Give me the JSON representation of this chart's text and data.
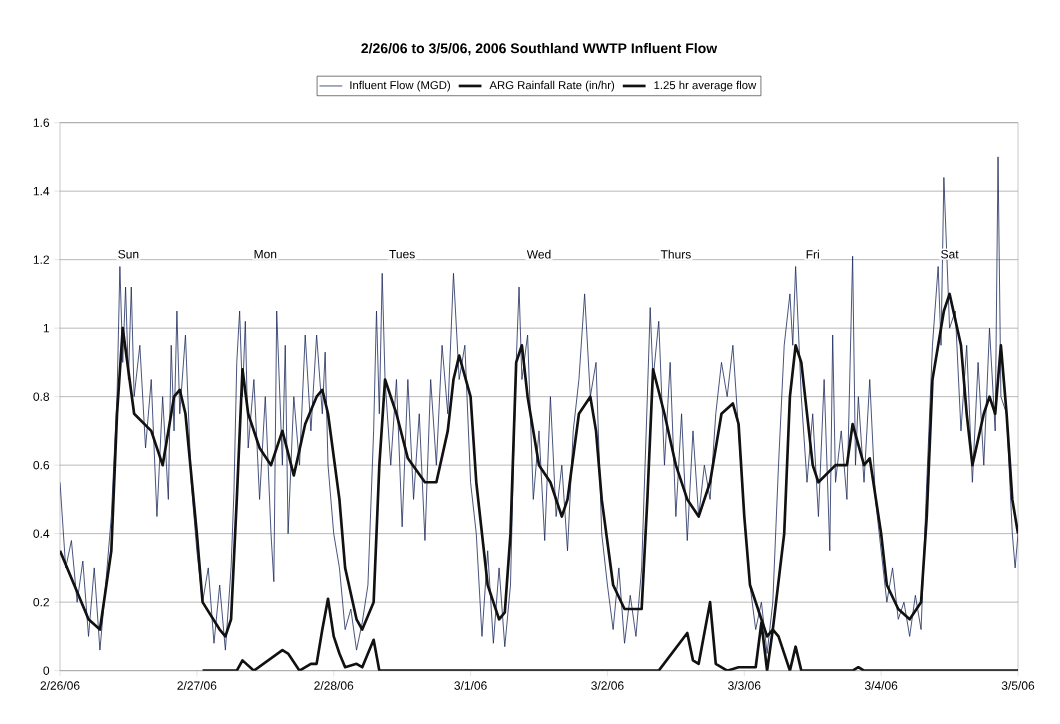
{
  "chart_data": {
    "type": "line",
    "title": "2/26/06 to 3/5/06, 2006 Southland WWTP Influent Flow",
    "xlim": [
      "2006-02-26",
      "2006-03-05"
    ],
    "xticks": [
      {
        "value": "2006-02-26",
        "label": "2/26/06"
      },
      {
        "value": "2006-02-27",
        "label": "2/27/06"
      },
      {
        "value": "2006-02-28",
        "label": "2/28/06"
      },
      {
        "value": "2006-03-01",
        "label": "3/1/06"
      },
      {
        "value": "2006-03-02",
        "label": "3/2/06"
      },
      {
        "value": "2006-03-03",
        "label": "3/3/06"
      },
      {
        "value": "2006-03-04",
        "label": "3/4/06"
      },
      {
        "value": "2006-03-05",
        "label": "3/5/06"
      }
    ],
    "ylim": [
      0,
      1.6
    ],
    "yticks": [
      0,
      0.2,
      0.4,
      0.6,
      0.8,
      1,
      1.2,
      1.4,
      1.6
    ],
    "grid": "y",
    "legend": "top",
    "series": [
      {
        "name": "Influent Flow (MGD)",
        "color": "#1c2a5c",
        "x": [
          "2006-02-26T00:00",
          "2006-02-26T01:00",
          "2006-02-26T02:00",
          "2006-02-26T03:00",
          "2006-02-26T04:00",
          "2006-02-26T05:00",
          "2006-02-26T06:00",
          "2006-02-26T07:00",
          "2006-02-26T08:00",
          "2006-02-26T09:00",
          "2006-02-26T10:00",
          "2006-02-26T10:30",
          "2006-02-26T11:00",
          "2006-02-26T11:30",
          "2006-02-26T12:00",
          "2006-02-26T12:30",
          "2006-02-26T13:00",
          "2006-02-26T14:00",
          "2006-02-26T15:00",
          "2006-02-26T16:00",
          "2006-02-26T17:00",
          "2006-02-26T18:00",
          "2006-02-26T19:00",
          "2006-02-26T19:30",
          "2006-02-26T20:00",
          "2006-02-26T20:30",
          "2006-02-26T21:00",
          "2006-02-26T22:00",
          "2006-02-26T23:00",
          "2006-02-27T00:00",
          "2006-02-27T01:00",
          "2006-02-27T02:00",
          "2006-02-27T03:00",
          "2006-02-27T04:00",
          "2006-02-27T05:00",
          "2006-02-27T06:00",
          "2006-02-27T06:30",
          "2006-02-27T07:00",
          "2006-02-27T07:30",
          "2006-02-27T08:00",
          "2006-02-27T08:30",
          "2006-02-27T09:00",
          "2006-02-27T10:00",
          "2006-02-27T11:00",
          "2006-02-27T12:00",
          "2006-02-27T13:00",
          "2006-02-27T13:30",
          "2006-02-27T14:00",
          "2006-02-27T15:00",
          "2006-02-27T15:30",
          "2006-02-27T16:00",
          "2006-02-27T17:00",
          "2006-02-27T18:00",
          "2006-02-27T19:00",
          "2006-02-27T20:00",
          "2006-02-27T21:00",
          "2006-02-27T22:00",
          "2006-02-27T22:30",
          "2006-02-27T23:00",
          "2006-02-28T00:00",
          "2006-02-28T01:00",
          "2006-02-28T02:00",
          "2006-02-28T03:00",
          "2006-02-28T04:00",
          "2006-02-28T05:00",
          "2006-02-28T06:00",
          "2006-02-28T07:00",
          "2006-02-28T07:30",
          "2006-02-28T08:00",
          "2006-02-28T08:30",
          "2006-02-28T09:00",
          "2006-02-28T10:00",
          "2006-02-28T11:00",
          "2006-02-28T12:00",
          "2006-02-28T13:00",
          "2006-02-28T14:00",
          "2006-02-28T15:00",
          "2006-02-28T16:00",
          "2006-02-28T17:00",
          "2006-02-28T18:00",
          "2006-02-28T19:00",
          "2006-02-28T20:00",
          "2006-02-28T21:00",
          "2006-02-28T22:00",
          "2006-02-28T23:00",
          "2006-03-01T00:00",
          "2006-03-01T01:00",
          "2006-03-01T02:00",
          "2006-03-01T03:00",
          "2006-03-01T04:00",
          "2006-03-01T05:00",
          "2006-03-01T06:00",
          "2006-03-01T07:00",
          "2006-03-01T07:30",
          "2006-03-01T08:00",
          "2006-03-01T08:30",
          "2006-03-01T09:00",
          "2006-03-01T10:00",
          "2006-03-01T11:00",
          "2006-03-01T12:00",
          "2006-03-01T13:00",
          "2006-03-01T14:00",
          "2006-03-01T15:00",
          "2006-03-01T16:00",
          "2006-03-01T17:00",
          "2006-03-01T18:00",
          "2006-03-01T19:00",
          "2006-03-01T20:00",
          "2006-03-01T21:00",
          "2006-03-01T22:00",
          "2006-03-01T23:00",
          "2006-03-02T00:00",
          "2006-03-02T01:00",
          "2006-03-02T02:00",
          "2006-03-02T03:00",
          "2006-03-02T04:00",
          "2006-03-02T05:00",
          "2006-03-02T06:00",
          "2006-03-02T07:00",
          "2006-03-02T07:30",
          "2006-03-02T08:00",
          "2006-03-02T09:00",
          "2006-03-02T10:00",
          "2006-03-02T11:00",
          "2006-03-02T12:00",
          "2006-03-02T13:00",
          "2006-03-02T14:00",
          "2006-03-02T15:00",
          "2006-03-02T16:00",
          "2006-03-02T17:00",
          "2006-03-02T18:00",
          "2006-03-02T19:00",
          "2006-03-02T20:00",
          "2006-03-02T21:00",
          "2006-03-02T22:00",
          "2006-03-02T23:00",
          "2006-03-03T00:00",
          "2006-03-03T01:00",
          "2006-03-03T02:00",
          "2006-03-03T03:00",
          "2006-03-03T04:00",
          "2006-03-03T05:00",
          "2006-03-03T06:00",
          "2006-03-03T07:00",
          "2006-03-03T08:00",
          "2006-03-03T08:30",
          "2006-03-03T09:00",
          "2006-03-03T10:00",
          "2006-03-03T11:00",
          "2006-03-03T12:00",
          "2006-03-03T13:00",
          "2006-03-03T14:00",
          "2006-03-03T15:00",
          "2006-03-03T15:30",
          "2006-03-03T16:00",
          "2006-03-03T17:00",
          "2006-03-03T18:00",
          "2006-03-03T19:00",
          "2006-03-03T19:30",
          "2006-03-03T20:00",
          "2006-03-03T21:00",
          "2006-03-03T22:00",
          "2006-03-03T23:00",
          "2006-03-04T00:00",
          "2006-03-04T01:00",
          "2006-03-04T02:00",
          "2006-03-04T03:00",
          "2006-03-04T04:00",
          "2006-03-04T05:00",
          "2006-03-04T06:00",
          "2006-03-04T07:00",
          "2006-03-04T08:00",
          "2006-03-04T09:00",
          "2006-03-04T10:00",
          "2006-03-04T10:30",
          "2006-03-04T11:00",
          "2006-03-04T12:00",
          "2006-03-04T13:00",
          "2006-03-04T14:00",
          "2006-03-04T15:00",
          "2006-03-04T16:00",
          "2006-03-04T17:00",
          "2006-03-04T18:00",
          "2006-03-04T19:00",
          "2006-03-04T20:00",
          "2006-03-04T20:30",
          "2006-03-04T21:00",
          "2006-03-04T22:00",
          "2006-03-04T23:00",
          "2006-03-04T23:30",
          "2006-03-05T00:00"
        ],
        "values": [
          0.55,
          0.3,
          0.38,
          0.2,
          0.32,
          0.1,
          0.3,
          0.06,
          0.25,
          0.45,
          0.8,
          1.18,
          0.9,
          1.12,
          0.85,
          1.12,
          0.8,
          0.95,
          0.65,
          0.85,
          0.45,
          0.8,
          0.5,
          0.95,
          0.7,
          1.05,
          0.75,
          0.98,
          0.55,
          0.35,
          0.2,
          0.3,
          0.08,
          0.25,
          0.06,
          0.3,
          0.52,
          0.9,
          1.05,
          0.8,
          1.02,
          0.65,
          0.85,
          0.5,
          0.8,
          0.4,
          0.26,
          1.05,
          0.6,
          0.95,
          0.4,
          0.8,
          0.6,
          0.98,
          0.7,
          0.98,
          0.75,
          0.93,
          0.6,
          0.4,
          0.3,
          0.12,
          0.18,
          0.06,
          0.14,
          0.25,
          0.7,
          1.05,
          0.75,
          1.16,
          0.85,
          0.6,
          0.85,
          0.42,
          0.85,
          0.5,
          0.75,
          0.38,
          0.85,
          0.6,
          0.95,
          0.75,
          1.16,
          0.85,
          0.95,
          0.55,
          0.4,
          0.1,
          0.35,
          0.08,
          0.3,
          0.07,
          0.25,
          0.6,
          0.9,
          1.12,
          0.85,
          0.98,
          0.5,
          0.7,
          0.38,
          0.8,
          0.45,
          0.6,
          0.35,
          0.7,
          0.85,
          1.1,
          0.8,
          0.9,
          0.4,
          0.25,
          0.12,
          0.3,
          0.08,
          0.22,
          0.1,
          0.3,
          0.8,
          1.06,
          0.85,
          1.02,
          0.6,
          0.9,
          0.45,
          0.75,
          0.38,
          0.7,
          0.45,
          0.6,
          0.5,
          0.75,
          0.9,
          0.8,
          0.95,
          0.7,
          0.45,
          0.25,
          0.12,
          0.2,
          0.05,
          0.2,
          0.6,
          0.95,
          1.1,
          0.95,
          1.18,
          0.8,
          0.55,
          0.75,
          0.45,
          0.85,
          0.35,
          0.98,
          0.55,
          0.7,
          0.5,
          1.21,
          0.6,
          0.8,
          0.55,
          0.85,
          0.5,
          0.35,
          0.2,
          0.3,
          0.15,
          0.2,
          0.1,
          0.22,
          0.12,
          0.55,
          0.95,
          1.18,
          0.95,
          1.44,
          1.0,
          1.05,
          0.7,
          0.95,
          0.55,
          0.9,
          0.6,
          1.0,
          0.7,
          1.5,
          0.8,
          0.75,
          0.4,
          0.3,
          0.4
        ]
      },
      {
        "name": "ARG Rainfall Rate (in/hr)",
        "color": "#111111",
        "x": [
          "2006-02-27T01:00",
          "2006-02-27T07:00",
          "2006-02-27T08:00",
          "2006-02-27T10:00",
          "2006-02-27T15:00",
          "2006-02-27T16:00",
          "2006-02-27T18:00",
          "2006-02-27T20:00",
          "2006-02-27T21:00",
          "2006-02-27T22:00",
          "2006-02-27T23:00",
          "2006-02-28T00:00",
          "2006-02-28T01:00",
          "2006-02-28T02:00",
          "2006-02-28T04:00",
          "2006-02-28T05:00",
          "2006-02-28T07:00",
          "2006-02-28T08:00",
          "2006-03-02T09:00",
          "2006-03-02T14:00",
          "2006-03-02T15:00",
          "2006-03-02T16:00",
          "2006-03-02T18:00",
          "2006-03-02T19:00",
          "2006-03-02T21:00",
          "2006-03-02T23:00",
          "2006-03-03T02:00",
          "2006-03-03T03:00",
          "2006-03-03T04:00",
          "2006-03-03T05:00",
          "2006-03-03T06:00",
          "2006-03-03T07:00",
          "2006-03-03T08:00",
          "2006-03-03T09:00",
          "2006-03-03T10:00",
          "2006-03-03T19:00",
          "2006-03-03T20:00",
          "2006-03-03T21:00",
          "2006-03-05T00:00"
        ],
        "values": [
          0,
          0,
          0.03,
          0,
          0.06,
          0.05,
          0,
          0.02,
          0.02,
          0.12,
          0.21,
          0.1,
          0.05,
          0.01,
          0.02,
          0.01,
          0.09,
          0,
          0,
          0.11,
          0.03,
          0.02,
          0.2,
          0.02,
          0,
          0.01,
          0.01,
          0.14,
          0,
          0.12,
          0.1,
          0.05,
          0,
          0.07,
          0,
          0,
          0.01,
          0,
          0
        ]
      },
      {
        "name": "1.25 hr average flow",
        "color": "#111111",
        "x": [
          "2006-02-26T00:00",
          "2006-02-26T05:00",
          "2006-02-26T07:00",
          "2006-02-26T09:00",
          "2006-02-26T10:00",
          "2006-02-26T11:00",
          "2006-02-26T13:00",
          "2006-02-26T16:00",
          "2006-02-26T18:00",
          "2006-02-26T20:00",
          "2006-02-26T21:00",
          "2006-02-26T22:00",
          "2006-02-27T00:00",
          "2006-02-27T01:00",
          "2006-02-27T04:00",
          "2006-02-27T05:00",
          "2006-02-27T06:00",
          "2006-02-27T07:00",
          "2006-02-27T08:00",
          "2006-02-27T09:00",
          "2006-02-27T11:00",
          "2006-02-27T13:00",
          "2006-02-27T15:00",
          "2006-02-27T17:00",
          "2006-02-27T19:00",
          "2006-02-27T21:00",
          "2006-02-27T22:00",
          "2006-02-27T23:00",
          "2006-02-28T01:00",
          "2006-02-28T02:00",
          "2006-02-28T04:00",
          "2006-02-28T05:00",
          "2006-02-28T07:00",
          "2006-02-28T08:00",
          "2006-02-28T09:00",
          "2006-02-28T11:00",
          "2006-02-28T13:00",
          "2006-02-28T16:00",
          "2006-02-28T18:00",
          "2006-02-28T20:00",
          "2006-02-28T21:00",
          "2006-02-28T22:00",
          "2006-03-01T00:00",
          "2006-03-01T01:00",
          "2006-03-01T03:00",
          "2006-03-01T04:00",
          "2006-03-01T05:00",
          "2006-03-01T06:00",
          "2006-03-01T07:00",
          "2006-03-01T08:00",
          "2006-03-01T09:00",
          "2006-03-01T10:00",
          "2006-03-01T12:00",
          "2006-03-01T14:00",
          "2006-03-01T16:00",
          "2006-03-01T17:00",
          "2006-03-01T19:00",
          "2006-03-01T21:00",
          "2006-03-01T22:00",
          "2006-03-01T23:00",
          "2006-03-02T01:00",
          "2006-03-02T03:00",
          "2006-03-02T06:00",
          "2006-03-02T07:00",
          "2006-03-02T08:00",
          "2006-03-02T10:00",
          "2006-03-02T12:00",
          "2006-03-02T14:00",
          "2006-03-02T16:00",
          "2006-03-02T18:00",
          "2006-03-02T20:00",
          "2006-03-02T22:00",
          "2006-03-02T23:00",
          "2006-03-03T00:00",
          "2006-03-03T01:00",
          "2006-03-03T03:00",
          "2006-03-03T04:00",
          "2006-03-03T05:00",
          "2006-03-03T07:00",
          "2006-03-03T08:00",
          "2006-03-03T09:00",
          "2006-03-03T10:00",
          "2006-03-03T12:00",
          "2006-03-03T13:00",
          "2006-03-03T16:00",
          "2006-03-03T18:00",
          "2006-03-03T19:00",
          "2006-03-03T21:00",
          "2006-03-03T22:00",
          "2006-03-04T00:00",
          "2006-03-04T01:00",
          "2006-03-04T03:00",
          "2006-03-04T05:00",
          "2006-03-04T07:00",
          "2006-03-04T08:00",
          "2006-03-04T09:00",
          "2006-03-04T11:00",
          "2006-03-04T12:00",
          "2006-03-04T14:00",
          "2006-03-04T15:00",
          "2006-03-04T16:00",
          "2006-03-04T18:00",
          "2006-03-04T19:00",
          "2006-03-04T20:00",
          "2006-03-04T21:00",
          "2006-03-04T22:00",
          "2006-03-04T23:00",
          "2006-03-05T00:00"
        ],
        "values": [
          0.35,
          0.15,
          0.12,
          0.35,
          0.75,
          1.0,
          0.75,
          0.7,
          0.6,
          0.8,
          0.82,
          0.75,
          0.4,
          0.2,
          0.12,
          0.1,
          0.15,
          0.5,
          0.88,
          0.75,
          0.65,
          0.6,
          0.7,
          0.57,
          0.72,
          0.8,
          0.82,
          0.75,
          0.5,
          0.3,
          0.15,
          0.12,
          0.2,
          0.6,
          0.85,
          0.75,
          0.62,
          0.55,
          0.55,
          0.7,
          0.85,
          0.92,
          0.8,
          0.55,
          0.25,
          0.2,
          0.15,
          0.17,
          0.4,
          0.9,
          0.95,
          0.8,
          0.6,
          0.55,
          0.45,
          0.5,
          0.75,
          0.8,
          0.7,
          0.5,
          0.25,
          0.18,
          0.18,
          0.5,
          0.88,
          0.75,
          0.6,
          0.5,
          0.45,
          0.55,
          0.75,
          0.78,
          0.72,
          0.45,
          0.25,
          0.15,
          0.1,
          0.12,
          0.4,
          0.8,
          0.95,
          0.9,
          0.6,
          0.55,
          0.6,
          0.6,
          0.72,
          0.6,
          0.62,
          0.4,
          0.25,
          0.18,
          0.15,
          0.2,
          0.45,
          0.85,
          1.05,
          1.1,
          0.95,
          0.75,
          0.6,
          0.75,
          0.8,
          0.75,
          0.95,
          0.75,
          0.5,
          0.4
        ]
      }
    ],
    "annotations": [
      "Sun",
      "Mon",
      "Tues",
      "Wed",
      "Thurs",
      "Fri",
      "Sat"
    ]
  }
}
